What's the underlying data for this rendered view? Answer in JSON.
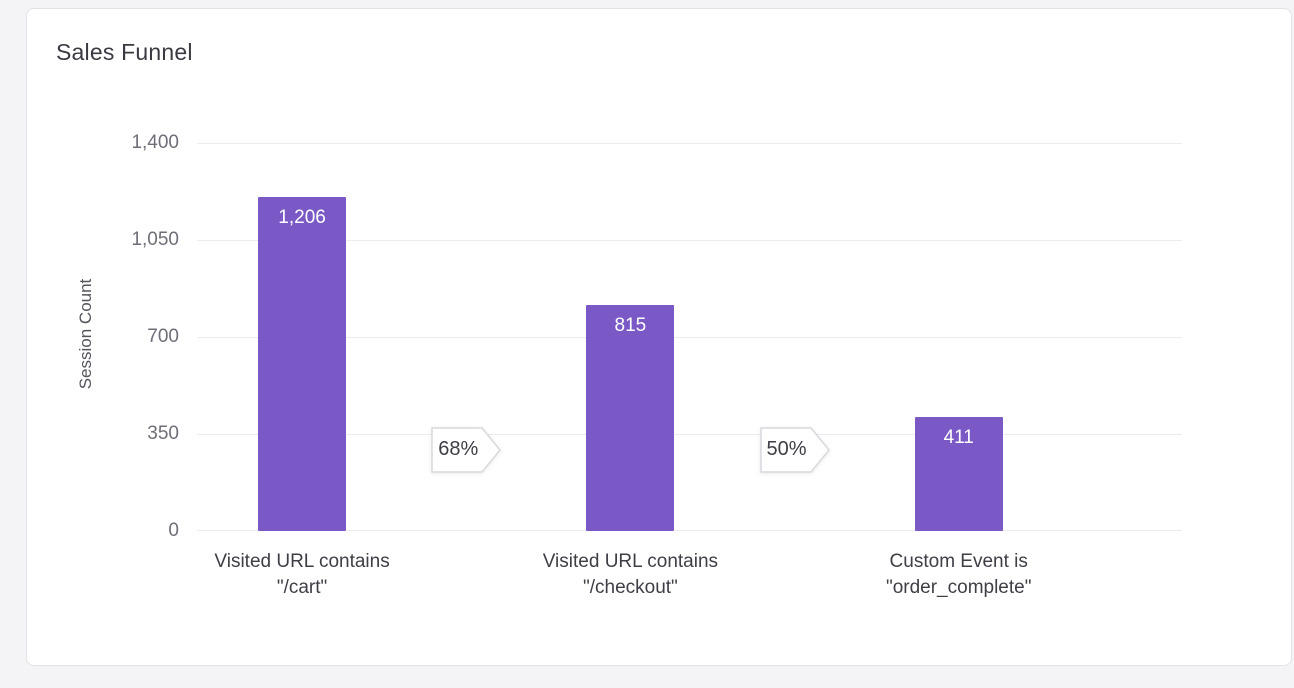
{
  "card": {
    "title": "Sales Funnel"
  },
  "chart_data": {
    "type": "bar",
    "title": "Sales Funnel",
    "xlabel": "",
    "ylabel": "Session Count",
    "ylim": [
      0,
      1400
    ],
    "grid": true,
    "legend": false,
    "yticks": [
      {
        "value": 1400,
        "label": "1,400"
      },
      {
        "value": 1050,
        "label": "1,050"
      },
      {
        "value": 700,
        "label": "700"
      },
      {
        "value": 350,
        "label": "350"
      },
      {
        "value": 0,
        "label": "0"
      }
    ],
    "categories": [
      "Visited URL contains\n\"/cart\"",
      "Visited URL contains\n\"/checkout\"",
      "Custom Event is\n\"order_complete\""
    ],
    "values": [
      1206,
      815,
      411
    ],
    "value_labels": [
      "1,206",
      "815",
      "411"
    ],
    "conversions": [
      "68%",
      "50%"
    ],
    "bar_color": "#7a59c6",
    "chip_border_color": "#d9d9de",
    "chip_fill_color": "#ffffff"
  }
}
